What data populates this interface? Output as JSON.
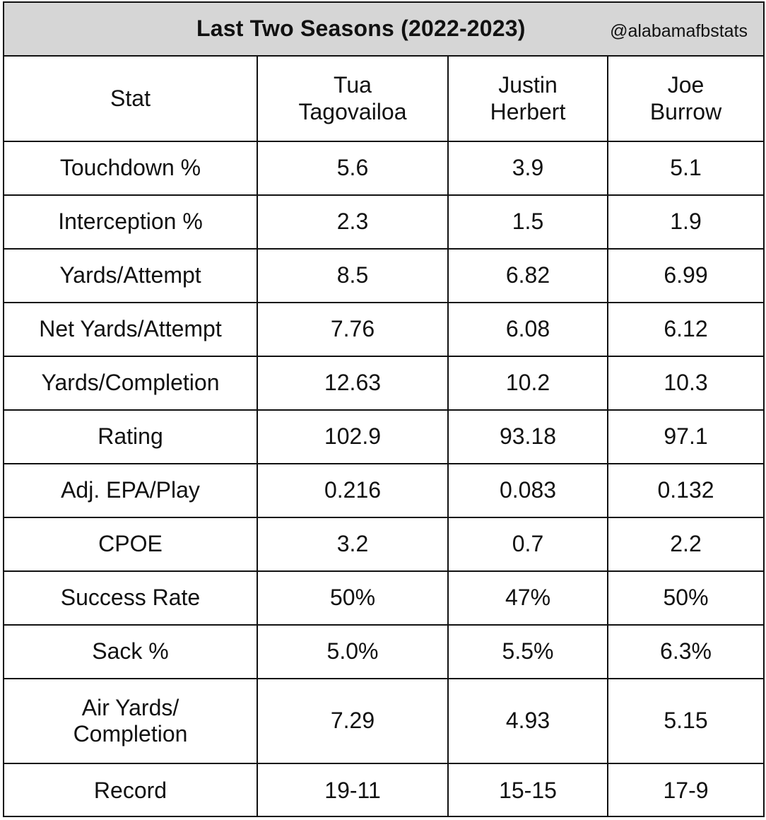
{
  "header": {
    "title": "Last Two Seasons (2022-2023)",
    "handle": "@alabamafbstats"
  },
  "table": {
    "columns": [
      {
        "lines": [
          "Stat"
        ]
      },
      {
        "lines": [
          "Tua",
          "Tagovailoa"
        ]
      },
      {
        "lines": [
          "Justin",
          "Herbert"
        ]
      },
      {
        "lines": [
          "Joe",
          "Burrow"
        ]
      }
    ],
    "rows": [
      {
        "stat": [
          "Touchdown %"
        ],
        "values": [
          "5.6",
          "3.9",
          "5.1"
        ]
      },
      {
        "stat": [
          "Interception %"
        ],
        "values": [
          "2.3",
          "1.5",
          "1.9"
        ]
      },
      {
        "stat": [
          "Yards/Attempt"
        ],
        "values": [
          "8.5",
          "6.82",
          "6.99"
        ]
      },
      {
        "stat": [
          "Net Yards/Attempt"
        ],
        "values": [
          "7.76",
          "6.08",
          "6.12"
        ]
      },
      {
        "stat": [
          "Yards/Completion"
        ],
        "values": [
          "12.63",
          "10.2",
          "10.3"
        ]
      },
      {
        "stat": [
          "Rating"
        ],
        "values": [
          "102.9",
          "93.18",
          "97.1"
        ]
      },
      {
        "stat": [
          "Adj. EPA/Play"
        ],
        "values": [
          "0.216",
          "0.083",
          "0.132"
        ]
      },
      {
        "stat": [
          "CPOE"
        ],
        "values": [
          "3.2",
          "0.7",
          "2.2"
        ]
      },
      {
        "stat": [
          "Success Rate"
        ],
        "values": [
          "50%",
          "47%",
          "50%"
        ]
      },
      {
        "stat": [
          "Sack %"
        ],
        "values": [
          "5.0%",
          "5.5%",
          "6.3%"
        ]
      },
      {
        "stat": [
          "Air Yards/",
          "Completion"
        ],
        "values": [
          "7.29",
          "4.93",
          "5.15"
        ]
      },
      {
        "stat": [
          "Record"
        ],
        "values": [
          "19-11",
          "15-15",
          "17-9"
        ]
      }
    ]
  }
}
